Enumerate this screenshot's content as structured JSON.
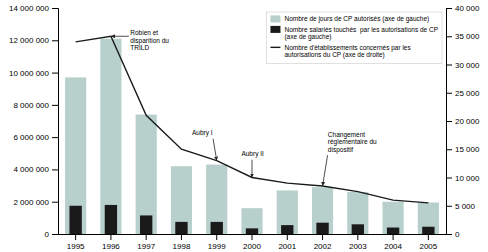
{
  "chart_data": {
    "type": "bar",
    "categories": [
      "1995",
      "1996",
      "1997",
      "1998",
      "1999",
      "2000",
      "2001",
      "2002",
      "2003",
      "2004",
      "2005"
    ],
    "series": [
      {
        "name": "Nombre de jours de CP autorisés (axe de gauche)",
        "type": "bar",
        "color": "#b8d0cc",
        "values": [
          9700000,
          12100000,
          7400000,
          4200000,
          4300000,
          1600000,
          2700000,
          2900000,
          2600000,
          2000000,
          1950000
        ]
      },
      {
        "name": "Nombre salariés touchés  par les autorisations de CP\n(axe de gauche)",
        "type": "bar",
        "color": "#1a1a1a",
        "values": [
          1750000,
          1800000,
          1150000,
          750000,
          750000,
          350000,
          550000,
          700000,
          600000,
          400000,
          450000
        ]
      },
      {
        "name": "Nombre d'établissements concernés par les\nautorisations du CP (axe de droite)",
        "type": "line",
        "axis": "y2",
        "color": "#1a1a1a",
        "values": [
          34000,
          35000,
          21000,
          15000,
          13000,
          10000,
          9000,
          8500,
          7500,
          6000,
          5500
        ]
      }
    ],
    "ylim": [
      0,
      14000000
    ],
    "yticks": [
      0,
      {
        "value": 2000000,
        "label": "2 000 000"
      },
      {
        "value": 4000000,
        "label": "4 000 000"
      },
      {
        "value": 6000000,
        "label": "6 000 000"
      },
      {
        "value": 8000000,
        "label": "8 000 000"
      },
      {
        "value": 10000000,
        "label": "10 000 000"
      },
      {
        "value": 12000000,
        "label": "12 000 000"
      },
      {
        "value": 14000000,
        "label": "14 000 000"
      }
    ],
    "y2lim": [
      0,
      40000
    ],
    "y2ticks": [
      0,
      {
        "value": 5000,
        "label": "5 000"
      },
      {
        "value": 10000,
        "label": "10 000"
      },
      {
        "value": 15000,
        "label": "15 000"
      },
      {
        "value": 20000,
        "label": "20 000"
      },
      {
        "value": 25000,
        "label": "25 000"
      },
      {
        "value": 30000,
        "label": "30 000"
      },
      {
        "value": 35000,
        "label": "35 000"
      },
      {
        "value": 40000,
        "label": "40 000"
      }
    ],
    "grid": false,
    "legend": "upper right",
    "annotations": [
      {
        "text": "Robien et\ndisparition du\nTRILD",
        "x": "1996"
      },
      {
        "text": "Aubry I",
        "x": "1999"
      },
      {
        "text": "Aubry II",
        "x": "2000"
      },
      {
        "text": "Changement\nréglementaire du\ndispositif",
        "x": "2002"
      }
    ]
  }
}
